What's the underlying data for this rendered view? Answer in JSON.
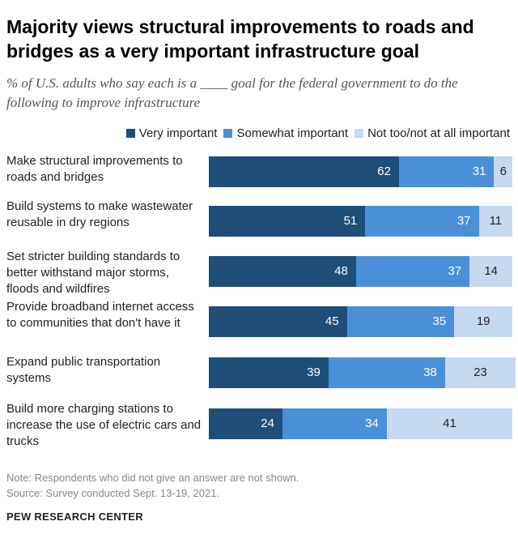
{
  "title": "Majority views structural improvements to roads and bridges as a very important infrastructure goal",
  "subtitle": "% of U.S. adults who say each is a ____ goal for the federal government to do the following to improve infrastructure",
  "note": "Note: Respondents who did not give an answer are not shown.",
  "source": "Source: Survey conducted Sept. 13-19, 2021.",
  "logo": "PEW RESEARCH CENTER",
  "colors": {
    "very": "#1f4e79",
    "somewhat": "#4a90d9",
    "nottoo": "#c5d9f0"
  },
  "chart_data": {
    "type": "bar",
    "orientation": "horizontal",
    "stacked": true,
    "legend": "top-right",
    "xlim": [
      0,
      100
    ],
    "categories": [
      "Make structural improvements to roads and bridges",
      "Build systems to make wastewater reusable in dry regions",
      "Set stricter building standards to better withstand major storms, floods and wildfires",
      "Provide broadband internet access to communities that don't have it",
      "Expand public transportation systems",
      "Build more charging stations to increase the use of electric cars and trucks"
    ],
    "series": [
      {
        "name": "Very important",
        "values": [
          62,
          51,
          48,
          45,
          39,
          24
        ]
      },
      {
        "name": "Somewhat important",
        "values": [
          31,
          37,
          37,
          35,
          38,
          34
        ]
      },
      {
        "name": "Not too/not at all important",
        "values": [
          6,
          11,
          14,
          19,
          23,
          41
        ]
      }
    ]
  }
}
